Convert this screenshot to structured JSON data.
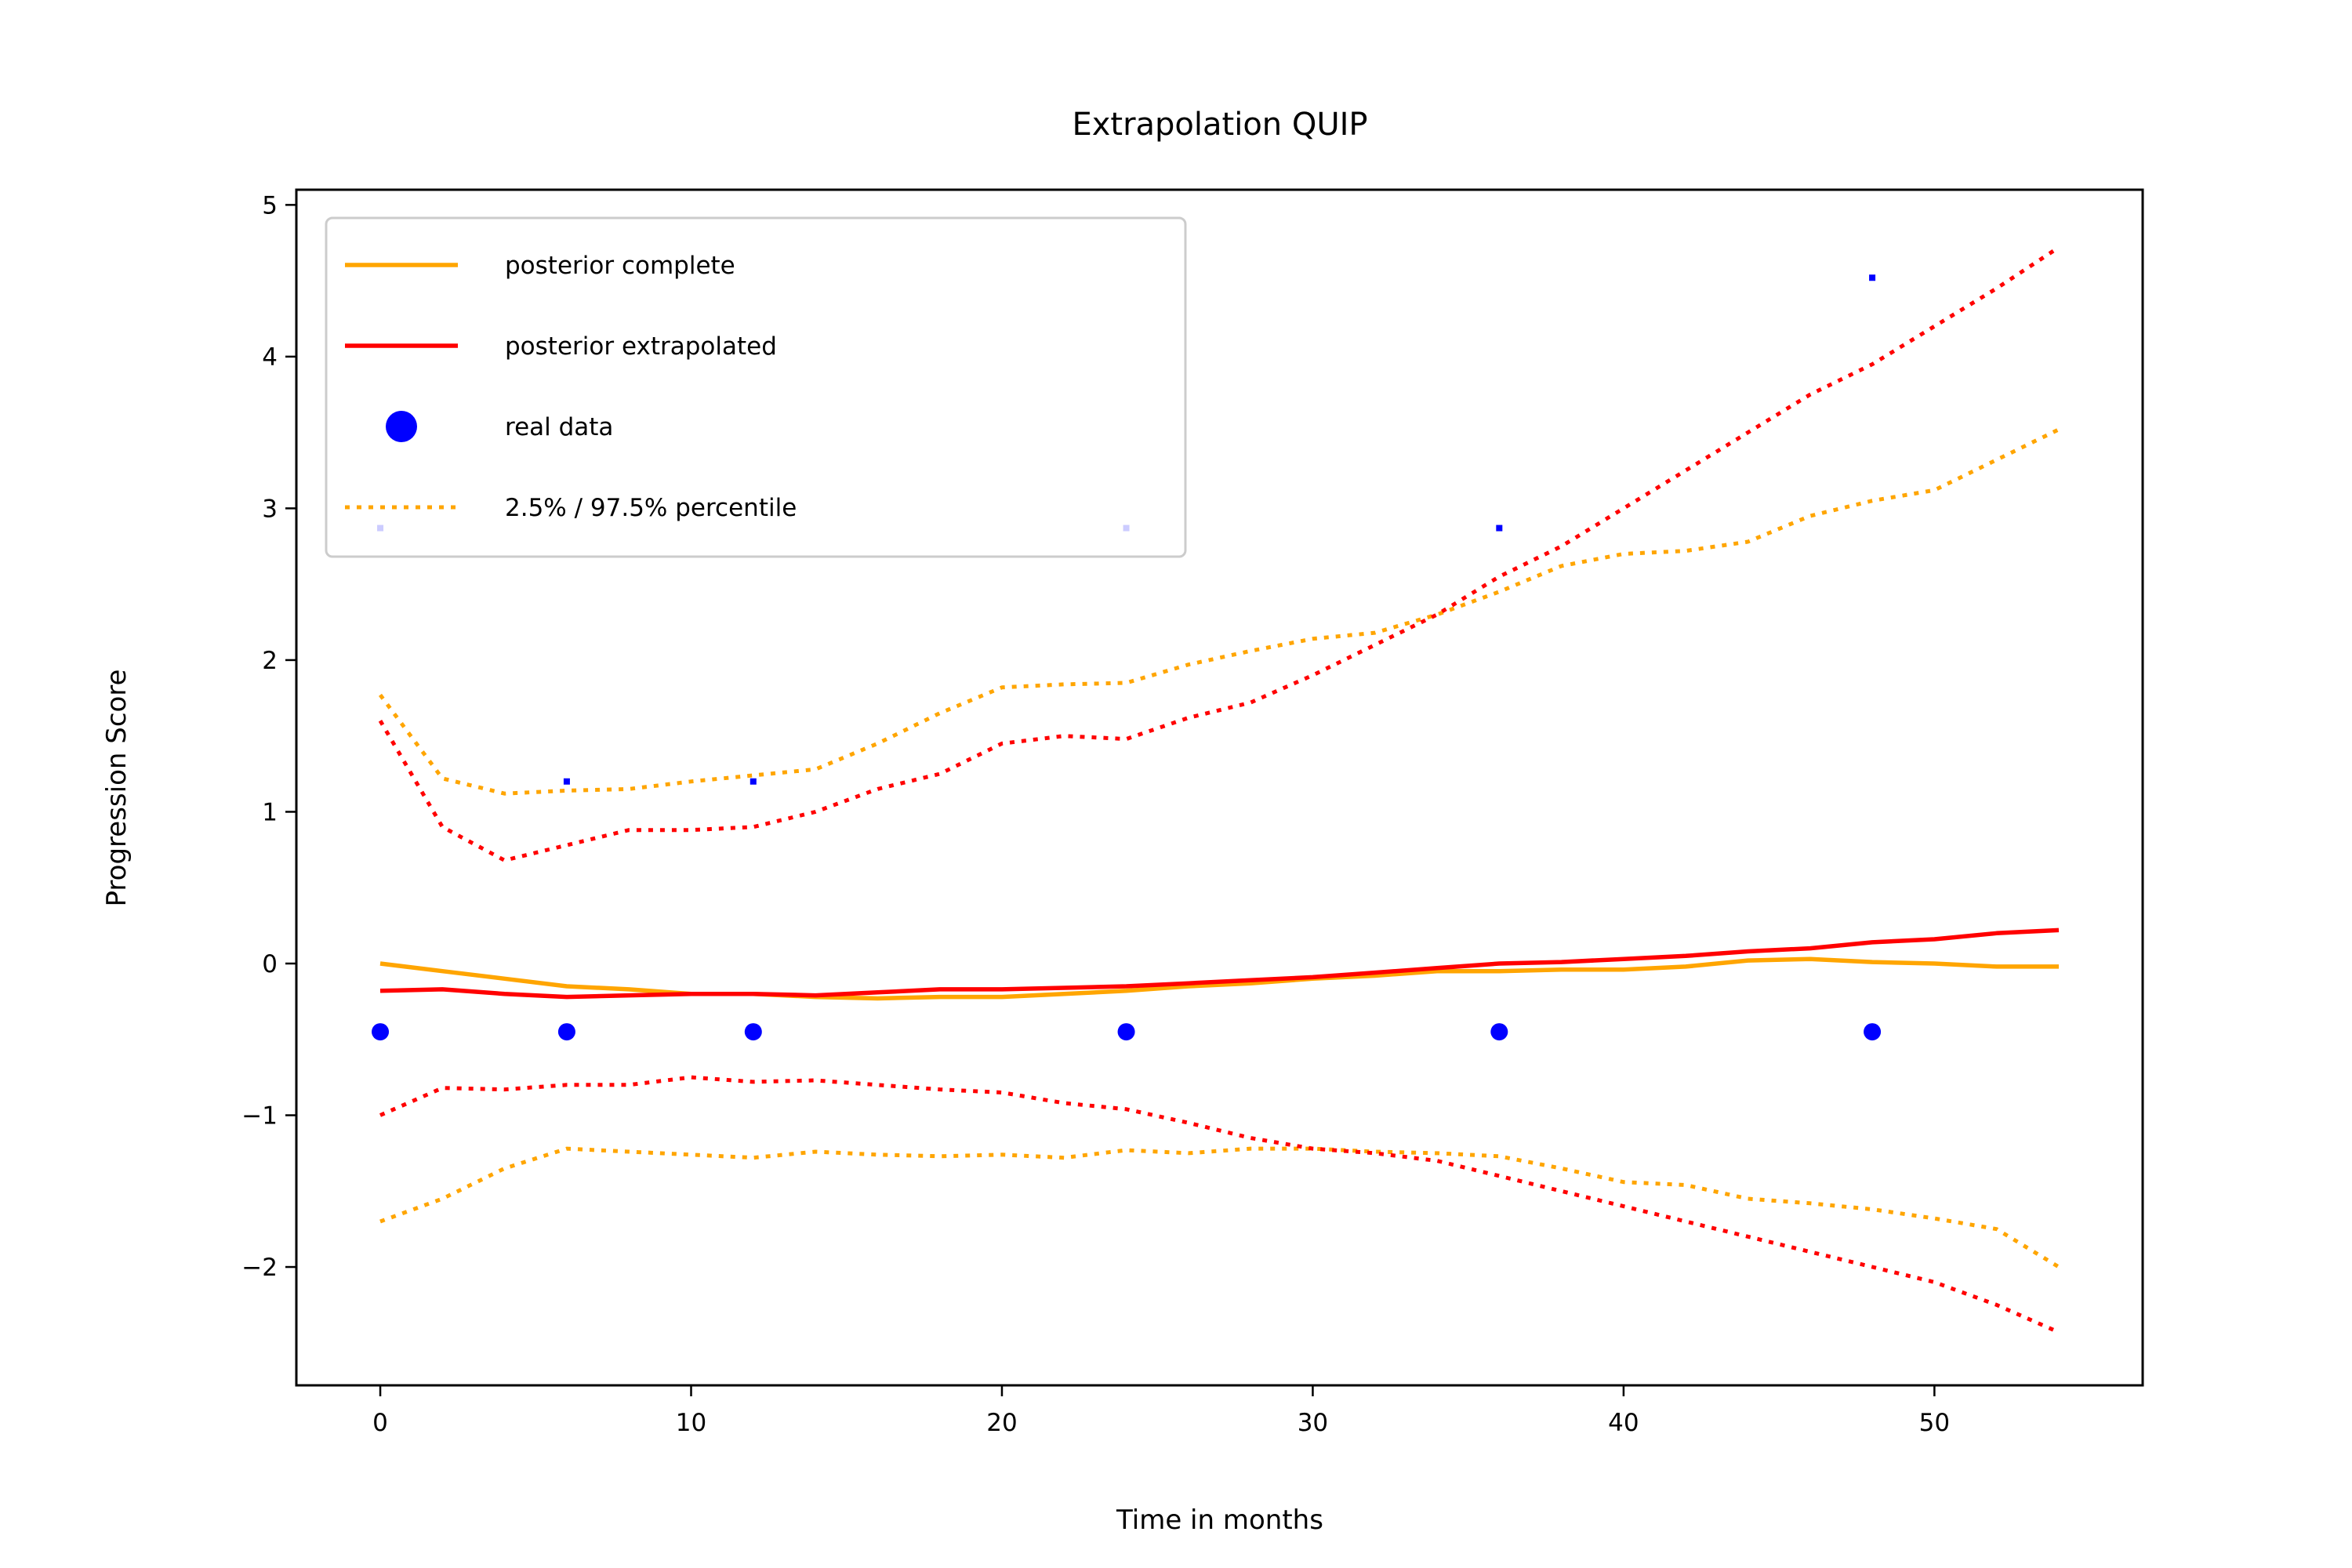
{
  "chart_data": {
    "type": "line",
    "title": "Extrapolation QUIP",
    "xlabel": "Time in months",
    "ylabel": "Progression Score",
    "xlim": [
      -2.7,
      56.7
    ],
    "ylim": [
      -2.78,
      5.1
    ],
    "x_ticks": [
      0,
      10,
      20,
      30,
      40,
      50
    ],
    "y_ticks": [
      -2,
      -1,
      0,
      1,
      2,
      3,
      4,
      5
    ],
    "x_tick_labels": [
      "0",
      "10",
      "20",
      "30",
      "40",
      "50"
    ],
    "y_tick_labels": [
      "−2",
      "−1",
      "0",
      "1",
      "2",
      "3",
      "4",
      "5"
    ],
    "grid": false,
    "legend_position": "upper-left",
    "legend": [
      {
        "label": "posterior complete",
        "color": "#FFA500",
        "style": "solid",
        "marker": "none"
      },
      {
        "label": "posterior extrapolated",
        "color": "#FF0000",
        "style": "solid",
        "marker": "none"
      },
      {
        "label": "real data",
        "color": "#0000FF",
        "style": "none",
        "marker": "circle"
      },
      {
        "label": "2.5% / 97.5% percentile",
        "color": "#FFA500",
        "style": "dotted",
        "marker": "none"
      }
    ],
    "series": [
      {
        "name": "posterior complete",
        "kind": "line",
        "style": "solid",
        "color": "#FFA500",
        "x": [
          0,
          2,
          4,
          6,
          8,
          10,
          12,
          14,
          16,
          18,
          20,
          22,
          24,
          26,
          28,
          30,
          32,
          34,
          36,
          38,
          40,
          42,
          44,
          46,
          48,
          50,
          52,
          54
        ],
        "y": [
          0.0,
          -0.05,
          -0.1,
          -0.15,
          -0.17,
          -0.2,
          -0.2,
          -0.22,
          -0.23,
          -0.22,
          -0.22,
          -0.2,
          -0.18,
          -0.15,
          -0.13,
          -0.1,
          -0.08,
          -0.05,
          -0.05,
          -0.04,
          -0.04,
          -0.02,
          0.02,
          0.03,
          0.01,
          0.0,
          -0.02,
          -0.02
        ]
      },
      {
        "name": "posterior extrapolated",
        "kind": "line",
        "style": "solid",
        "color": "#FF0000",
        "x": [
          0,
          2,
          4,
          6,
          8,
          10,
          12,
          14,
          16,
          18,
          20,
          22,
          24,
          26,
          28,
          30,
          32,
          34,
          36,
          38,
          40,
          42,
          44,
          46,
          48,
          50,
          52,
          54
        ],
        "y": [
          -0.18,
          -0.17,
          -0.2,
          -0.22,
          -0.21,
          -0.2,
          -0.2,
          -0.21,
          -0.19,
          -0.17,
          -0.17,
          -0.16,
          -0.15,
          -0.13,
          -0.11,
          -0.09,
          -0.06,
          -0.03,
          0.0,
          0.01,
          0.03,
          0.05,
          0.08,
          0.1,
          0.14,
          0.16,
          0.2,
          0.22
        ]
      },
      {
        "name": "posterior complete 2.5%",
        "kind": "line",
        "style": "dotted",
        "color": "#FFA500",
        "x": [
          0,
          2,
          4,
          6,
          8,
          10,
          12,
          14,
          16,
          18,
          20,
          22,
          24,
          26,
          28,
          30,
          32,
          34,
          36,
          38,
          40,
          42,
          44,
          46,
          48,
          50,
          52,
          54
        ],
        "y": [
          -1.7,
          -1.55,
          -1.35,
          -1.22,
          -1.24,
          -1.26,
          -1.28,
          -1.24,
          -1.26,
          -1.27,
          -1.26,
          -1.28,
          -1.23,
          -1.25,
          -1.22,
          -1.22,
          -1.24,
          -1.25,
          -1.27,
          -1.35,
          -1.44,
          -1.46,
          -1.55,
          -1.58,
          -1.62,
          -1.68,
          -1.75,
          -2.0
        ]
      },
      {
        "name": "posterior complete 97.5%",
        "kind": "line",
        "style": "dotted",
        "color": "#FFA500",
        "x": [
          0,
          2,
          4,
          6,
          8,
          10,
          12,
          14,
          16,
          18,
          20,
          22,
          24,
          26,
          28,
          30,
          32,
          34,
          36,
          38,
          40,
          42,
          44,
          46,
          48,
          50,
          52,
          54
        ],
        "y": [
          1.77,
          1.22,
          1.12,
          1.14,
          1.15,
          1.2,
          1.24,
          1.28,
          1.45,
          1.65,
          1.82,
          1.84,
          1.85,
          1.97,
          2.06,
          2.14,
          2.18,
          2.3,
          2.45,
          2.62,
          2.7,
          2.72,
          2.78,
          2.95,
          3.05,
          3.12,
          3.32,
          3.52
        ]
      },
      {
        "name": "posterior extrapolated 2.5%",
        "kind": "line",
        "style": "dotted",
        "color": "#FF0000",
        "x": [
          0,
          2,
          4,
          6,
          8,
          10,
          12,
          14,
          16,
          18,
          20,
          22,
          24,
          26,
          28,
          30,
          32,
          34,
          36,
          38,
          40,
          42,
          44,
          46,
          48,
          50,
          52,
          54
        ],
        "y": [
          -1.0,
          -0.82,
          -0.83,
          -0.8,
          -0.8,
          -0.75,
          -0.78,
          -0.77,
          -0.8,
          -0.83,
          -0.85,
          -0.92,
          -0.96,
          -1.05,
          -1.15,
          -1.22,
          -1.25,
          -1.3,
          -1.4,
          -1.5,
          -1.6,
          -1.7,
          -1.8,
          -1.9,
          -2.0,
          -2.1,
          -2.25,
          -2.43
        ]
      },
      {
        "name": "posterior extrapolated 97.5%",
        "kind": "line",
        "style": "dotted",
        "color": "#FF0000",
        "x": [
          0,
          2,
          4,
          6,
          8,
          10,
          12,
          14,
          16,
          18,
          20,
          22,
          24,
          26,
          28,
          30,
          32,
          34,
          36,
          38,
          40,
          42,
          44,
          46,
          48,
          50,
          52,
          54
        ],
        "y": [
          1.6,
          0.9,
          0.68,
          0.78,
          0.88,
          0.88,
          0.9,
          1.0,
          1.15,
          1.25,
          1.45,
          1.5,
          1.48,
          1.62,
          1.72,
          1.9,
          2.1,
          2.3,
          2.55,
          2.75,
          3.0,
          3.25,
          3.5,
          3.75,
          3.95,
          4.2,
          4.45,
          4.72
        ]
      },
      {
        "name": "real data",
        "kind": "scatter",
        "color": "#0000FF",
        "marker_size": "large",
        "x": [
          0,
          6,
          12,
          24,
          36,
          48
        ],
        "y": [
          -0.45,
          -0.45,
          -0.45,
          -0.45,
          -0.45,
          -0.45
        ]
      },
      {
        "name": "real data",
        "kind": "scatter",
        "color": "#0000FF",
        "marker_size": "small",
        "x": [
          0,
          6,
          12,
          24,
          36,
          48
        ],
        "y": [
          2.87,
          1.2,
          1.2,
          2.87,
          2.87,
          4.52
        ]
      }
    ]
  }
}
